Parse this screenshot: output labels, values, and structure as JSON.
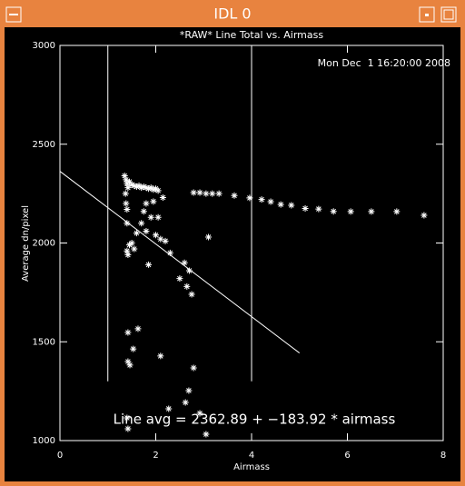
{
  "window": {
    "title": "IDL 0"
  },
  "chart_data": {
    "type": "scatter",
    "title": "*RAW* Line Total vs. Airmass",
    "timestamp": "Mon Dec  1 16:20:00 2008",
    "x_label": "Airmass",
    "y_label": "Average dn/pixel",
    "annotation": "Line avg = 2362.89 + −183.92 * airmass",
    "color": "#ffffff",
    "xlim": [
      0,
      8
    ],
    "xticks": [
      0,
      2,
      4,
      6,
      8
    ],
    "ylim": [
      1000,
      3000
    ],
    "yticks": [
      1000,
      1500,
      2000,
      2500,
      3000
    ],
    "vlines": [
      1,
      4
    ],
    "vline_ylim": [
      1300,
      3000
    ],
    "fit": {
      "intercept": 2362.89,
      "slope": -183.92,
      "xrange": [
        0,
        5
      ]
    },
    "x": [
      2.79,
      2.92,
      3.05,
      3.18,
      3.32,
      3.64,
      3.96,
      4.21,
      4.4,
      4.61,
      4.83,
      5.12,
      5.4,
      5.71,
      6.07,
      6.5,
      7.03,
      7.6,
      1.35,
      1.38,
      1.4,
      1.42,
      1.45,
      1.5,
      1.55,
      1.6,
      1.65,
      1.7,
      1.75,
      1.8,
      1.85,
      1.9,
      1.95,
      2.0,
      2.05,
      1.37,
      1.38,
      1.4,
      1.4,
      1.4,
      1.42,
      1.45,
      1.5,
      1.55,
      1.6,
      1.7,
      1.75,
      1.8,
      1.85,
      1.9,
      1.95,
      2.0,
      2.05,
      2.1,
      2.15,
      2.2,
      2.3,
      2.5,
      2.6,
      2.7,
      2.75,
      2.65,
      3.1,
      1.8,
      1.42,
      1.63,
      1.42,
      1.53,
      1.46,
      2.1,
      2.79,
      2.69,
      2.62,
      2.27,
      1.4,
      1.42,
      2.92,
      3.05
    ],
    "values": [
      2255,
      2255,
      2250,
      2250,
      2250,
      2240,
      2228,
      2220,
      2209,
      2195,
      2191,
      2175,
      2172,
      2160,
      2159,
      2159,
      2159,
      2140,
      2340,
      2320,
      2300,
      2280,
      2310,
      2295,
      2290,
      2285,
      2290,
      2280,
      2285,
      2280,
      2275,
      2280,
      2270,
      2275,
      2265,
      2250,
      2200,
      2170,
      2100,
      1960,
      1940,
      1990,
      2000,
      1970,
      2050,
      2100,
      2160,
      2060,
      1890,
      2130,
      2210,
      2040,
      2130,
      2020,
      2230,
      2010,
      1950,
      1820,
      1900,
      1860,
      1740,
      1780,
      2030,
      2200,
      1547,
      1566,
      1400,
      1464,
      1382,
      1428,
      1368,
      1253,
      1193,
      1161,
      1115,
      1060,
      1138,
      1032
    ]
  }
}
